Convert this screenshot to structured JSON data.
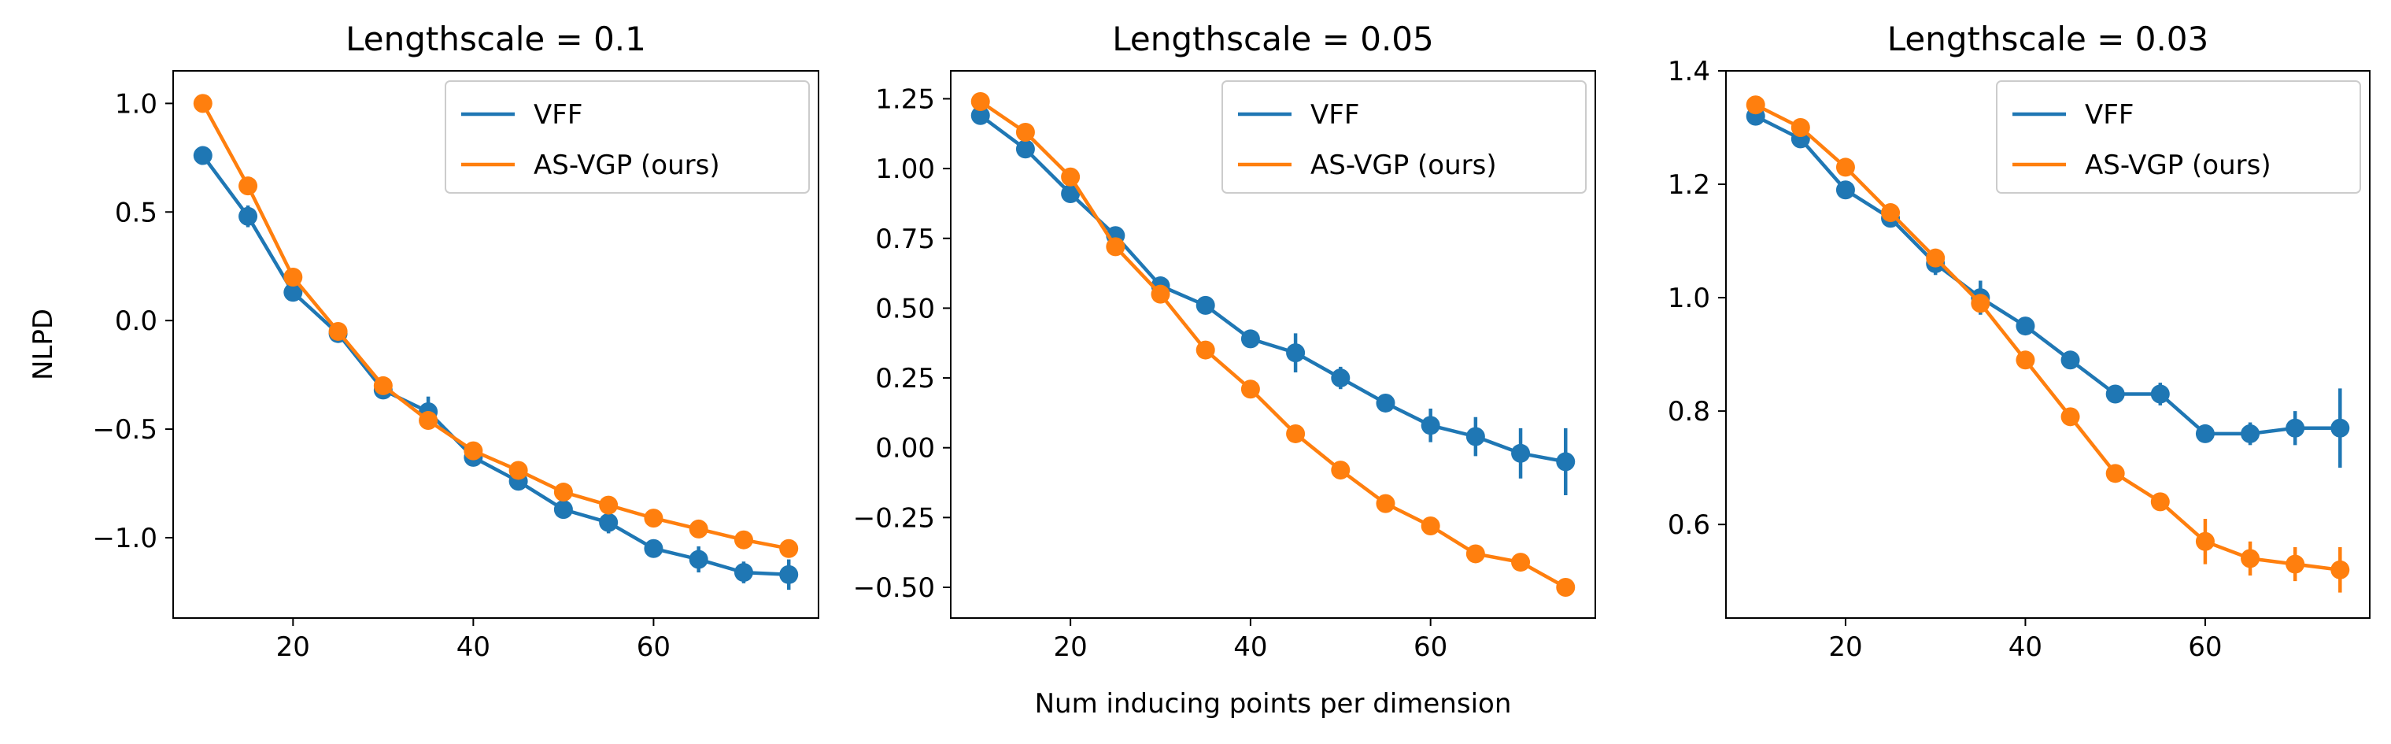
{
  "figure": {
    "shared_xlabel": "Num inducing points per dimension",
    "shared_ylabel": "NLPD"
  },
  "colors": {
    "vff": "#1f77b4",
    "asvgp": "#ff7f0e"
  },
  "chart_data": [
    {
      "type": "line",
      "title": "Lengthscale = 0.1",
      "xlabel": "",
      "ylabel": "NLPD",
      "x": [
        10,
        15,
        20,
        25,
        30,
        35,
        40,
        45,
        50,
        55,
        60,
        65,
        70,
        75
      ],
      "xlim": [
        6.7,
        78.3
      ],
      "ylim": [
        -1.37,
        1.15
      ],
      "xticks": [
        {
          "v": 20,
          "label": "20"
        },
        {
          "v": 40,
          "label": "40"
        },
        {
          "v": 60,
          "label": "60"
        }
      ],
      "yticks": [
        {
          "v": 1.0,
          "label": "1.0"
        },
        {
          "v": 0.5,
          "label": "0.5"
        },
        {
          "v": 0.0,
          "label": "0.0"
        },
        {
          "v": -0.5,
          "label": "−0.5"
        },
        {
          "v": -1.0,
          "label": "−1.0"
        }
      ],
      "grid": false,
      "legend": "top-right",
      "series": [
        {
          "name": "VFF",
          "color": "#1f77b4",
          "values": [
            0.76,
            0.48,
            0.13,
            -0.06,
            -0.32,
            -0.42,
            -0.63,
            -0.74,
            -0.87,
            -0.93,
            -1.05,
            -1.1,
            -1.16,
            -1.17
          ],
          "errors": [
            0.02,
            0.05,
            0.04,
            0.03,
            0.03,
            0.07,
            0.03,
            0.04,
            0.02,
            0.05,
            0.04,
            0.06,
            0.05,
            0.07
          ]
        },
        {
          "name": "AS-VGP (ours)",
          "color": "#ff7f0e",
          "values": [
            1.0,
            0.62,
            0.2,
            -0.05,
            -0.3,
            -0.46,
            -0.6,
            -0.69,
            -0.79,
            -0.85,
            -0.91,
            -0.96,
            -1.01,
            -1.05
          ],
          "errors": [
            0.01,
            0.01,
            0.01,
            0.01,
            0.01,
            0.01,
            0.01,
            0.01,
            0.01,
            0.01,
            0.01,
            0.01,
            0.01,
            0.01
          ]
        }
      ]
    },
    {
      "type": "line",
      "title": "Lengthscale = 0.05",
      "xlabel": "Num inducing points per dimension",
      "ylabel": "",
      "x": [
        10,
        15,
        20,
        25,
        30,
        35,
        40,
        45,
        50,
        55,
        60,
        65,
        70,
        75
      ],
      "xlim": [
        6.7,
        78.3
      ],
      "ylim": [
        -0.61,
        1.35
      ],
      "xticks": [
        {
          "v": 20,
          "label": "20"
        },
        {
          "v": 40,
          "label": "40"
        },
        {
          "v": 60,
          "label": "60"
        }
      ],
      "yticks": [
        {
          "v": 1.25,
          "label": "1.25"
        },
        {
          "v": 1.0,
          "label": "1.00"
        },
        {
          "v": 0.75,
          "label": "0.75"
        },
        {
          "v": 0.5,
          "label": "0.50"
        },
        {
          "v": 0.25,
          "label": "0.25"
        },
        {
          "v": 0.0,
          "label": "0.00"
        },
        {
          "v": -0.25,
          "label": "−0.25"
        },
        {
          "v": -0.5,
          "label": "−0.50"
        }
      ],
      "grid": false,
      "legend": "top-right",
      "series": [
        {
          "name": "VFF",
          "color": "#1f77b4",
          "values": [
            1.19,
            1.07,
            0.91,
            0.76,
            0.58,
            0.51,
            0.39,
            0.34,
            0.25,
            0.16,
            0.08,
            0.04,
            -0.02,
            -0.05
          ],
          "errors": [
            0.02,
            0.02,
            0.02,
            0.02,
            0.03,
            0.02,
            0.02,
            0.07,
            0.04,
            0.02,
            0.06,
            0.07,
            0.09,
            0.12
          ]
        },
        {
          "name": "AS-VGP (ours)",
          "color": "#ff7f0e",
          "values": [
            1.24,
            1.13,
            0.97,
            0.72,
            0.55,
            0.35,
            0.21,
            0.05,
            -0.08,
            -0.2,
            -0.28,
            -0.38,
            -0.41,
            -0.5
          ],
          "errors": [
            0.01,
            0.01,
            0.01,
            0.01,
            0.01,
            0.01,
            0.01,
            0.01,
            0.01,
            0.01,
            0.01,
            0.01,
            0.01,
            0.01
          ]
        }
      ]
    },
    {
      "type": "line",
      "title": "Lengthscale = 0.03",
      "xlabel": "",
      "ylabel": "",
      "x": [
        10,
        15,
        20,
        25,
        30,
        35,
        40,
        45,
        50,
        55,
        60,
        65,
        70,
        75
      ],
      "xlim": [
        6.7,
        78.3
      ],
      "ylim": [
        0.435,
        1.4
      ],
      "xticks": [
        {
          "v": 20,
          "label": "20"
        },
        {
          "v": 40,
          "label": "40"
        },
        {
          "v": 60,
          "label": "60"
        }
      ],
      "yticks": [
        {
          "v": 1.4,
          "label": "1.4"
        },
        {
          "v": 1.2,
          "label": "1.2"
        },
        {
          "v": 1.0,
          "label": "1.0"
        },
        {
          "v": 0.8,
          "label": "0.8"
        },
        {
          "v": 0.6,
          "label": "0.6"
        }
      ],
      "grid": false,
      "legend": "top-right",
      "series": [
        {
          "name": "VFF",
          "color": "#1f77b4",
          "values": [
            1.32,
            1.28,
            1.19,
            1.14,
            1.06,
            1.0,
            0.95,
            0.89,
            0.83,
            0.83,
            0.76,
            0.76,
            0.77,
            0.77
          ],
          "errors": [
            0.01,
            0.01,
            0.01,
            0.01,
            0.02,
            0.03,
            0.01,
            0.01,
            0.01,
            0.02,
            0.01,
            0.02,
            0.03,
            0.07
          ]
        },
        {
          "name": "AS-VGP (ours)",
          "color": "#ff7f0e",
          "values": [
            1.34,
            1.3,
            1.23,
            1.15,
            1.07,
            0.99,
            0.89,
            0.79,
            0.69,
            0.64,
            0.57,
            0.54,
            0.53,
            0.52
          ],
          "errors": [
            0.01,
            0.01,
            0.01,
            0.01,
            0.01,
            0.01,
            0.01,
            0.01,
            0.01,
            0.01,
            0.04,
            0.03,
            0.03,
            0.04
          ]
        }
      ]
    }
  ]
}
